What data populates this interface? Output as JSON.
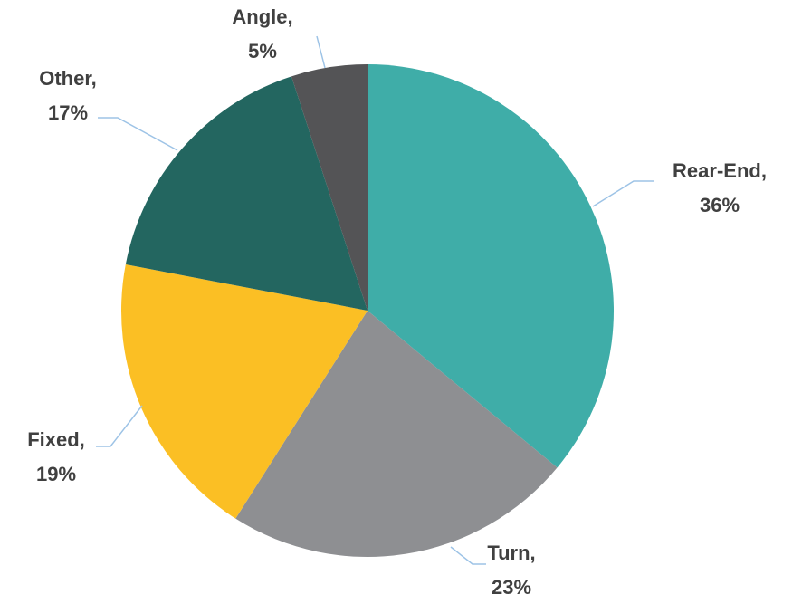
{
  "chart_data": {
    "type": "pie",
    "categories": [
      "Rear-End,",
      "Turn,",
      "Fixed,",
      "Other,",
      "Angle,"
    ],
    "values": [
      36,
      23,
      19,
      17,
      5
    ],
    "value_labels": [
      "36%",
      "23%",
      "19%",
      "17%",
      "5%"
    ],
    "colors": [
      "#3fada8",
      "#8e8f92",
      "#fbbf24",
      "#236660",
      "#545456"
    ]
  }
}
